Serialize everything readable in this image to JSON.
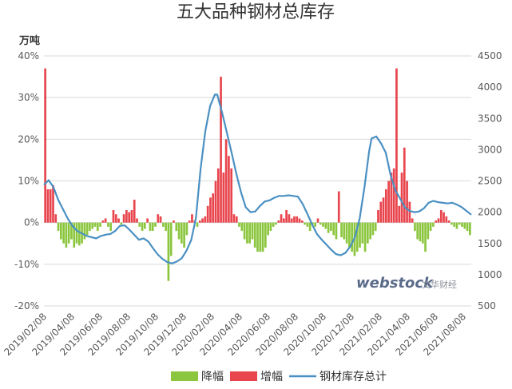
{
  "chart_data": {
    "type": "bar+line",
    "title": "五大品种钢材总库存",
    "y_left_unit": "万吨",
    "y_left_ticks": [
      "40%",
      "30%",
      "20%",
      "10%",
      "0%",
      "-10%",
      "-20%"
    ],
    "y_left_range": [
      -0.2,
      0.4
    ],
    "y_right_ticks": [
      "4500",
      "4000",
      "3500",
      "3000",
      "2500",
      "2000",
      "1500",
      "1000",
      "500"
    ],
    "y_right_range": [
      500,
      4500
    ],
    "x_tick_labels": [
      "2019/02/08",
      "2019/04/08",
      "2019/06/08",
      "2019/08/08",
      "2019/10/08",
      "2019/12/08",
      "2020/02/08",
      "2020/04/08",
      "2020/06/08",
      "2020/08/08",
      "2020/10/08",
      "2020/12/08",
      "2021/02/08",
      "2021/04/08",
      "2021/06/08",
      "2021/08/08"
    ],
    "x_range_weeks": [
      0,
      140
    ],
    "legend": [
      {
        "name": "降幅",
        "color": "#8cc63f"
      },
      {
        "name": "增幅",
        "color": "#e8454d"
      },
      {
        "name": "钢材库存总计",
        "color": "#4a90c2"
      }
    ],
    "watermark": {
      "brand": "webstock",
      "cn": "文华财经"
    },
    "bars_pct": [
      0.37,
      0.08,
      0.08,
      0.09,
      0.02,
      -0.02,
      -0.04,
      -0.05,
      -0.06,
      -0.05,
      -0.04,
      -0.06,
      -0.05,
      -0.055,
      -0.05,
      -0.04,
      -0.03,
      -0.02,
      -0.015,
      -0.01,
      -0.02,
      -0.01,
      0.005,
      0.01,
      -0.01,
      -0.02,
      0.03,
      0.02,
      0.01,
      -0.005,
      0.02,
      0.03,
      0.025,
      0.03,
      0.055,
      0.01,
      -0.01,
      -0.02,
      -0.015,
      0.01,
      -0.02,
      -0.02,
      -0.01,
      0.02,
      0.015,
      -0.01,
      -0.02,
      -0.14,
      -0.08,
      0.005,
      -0.02,
      -0.04,
      -0.05,
      -0.06,
      -0.03,
      0.005,
      0.02,
      0.005,
      -0.01,
      0.005,
      0.01,
      0.015,
      0.04,
      0.06,
      0.07,
      0.1,
      0.13,
      0.35,
      0.12,
      0.2,
      0.16,
      0.13,
      0.02,
      0.015,
      -0.01,
      -0.02,
      -0.04,
      -0.05,
      -0.05,
      -0.04,
      -0.06,
      -0.07,
      -0.07,
      -0.07,
      -0.06,
      -0.03,
      -0.02,
      -0.01,
      -0.005,
      0.005,
      0.02,
      0.01,
      0.03,
      0.02,
      0.01,
      0.015,
      0.015,
      0.01,
      0.005,
      -0.005,
      -0.01,
      -0.02,
      -0.005,
      -0.01,
      0.01,
      -0.005,
      -0.01,
      -0.015,
      -0.025,
      -0.02,
      -0.03,
      -0.04,
      0.075,
      -0.035,
      -0.04,
      -0.05,
      -0.06,
      -0.07,
      -0.08,
      -0.07,
      -0.06,
      -0.05,
      -0.07,
      -0.05,
      -0.04,
      -0.03,
      -0.02,
      0.03,
      0.05,
      0.06,
      0.08,
      0.1,
      0.12,
      0.13,
      0.37,
      0.04,
      0.12,
      0.18,
      0.1,
      0.05,
      0.01,
      -0.02,
      -0.04,
      -0.045,
      -0.05,
      -0.07
    ],
    "bars_pct_tail": [
      -0.04,
      -0.02,
      -0.01,
      0.005,
      0.01,
      0.03,
      0.025,
      0.015,
      0.005,
      -0.005,
      -0.01,
      -0.015,
      -0.005,
      -0.01,
      -0.015,
      -0.02,
      -0.03
    ],
    "inventory_points_wan_ton": [
      [
        0,
        2440
      ],
      [
        2,
        2510
      ],
      [
        4,
        2400
      ],
      [
        6,
        2200
      ],
      [
        8,
        2050
      ],
      [
        10,
        1900
      ],
      [
        12,
        1780
      ],
      [
        14,
        1700
      ],
      [
        16,
        1660
      ],
      [
        18,
        1620
      ],
      [
        20,
        1600
      ],
      [
        22,
        1580
      ],
      [
        24,
        1620
      ],
      [
        26,
        1640
      ],
      [
        28,
        1650
      ],
      [
        30,
        1700
      ],
      [
        32,
        1780
      ],
      [
        34,
        1790
      ],
      [
        36,
        1720
      ],
      [
        38,
        1640
      ],
      [
        40,
        1560
      ],
      [
        42,
        1580
      ],
      [
        44,
        1530
      ],
      [
        46,
        1420
      ],
      [
        48,
        1320
      ],
      [
        50,
        1250
      ],
      [
        52,
        1200
      ],
      [
        54,
        1180
      ],
      [
        56,
        1210
      ],
      [
        58,
        1260
      ],
      [
        60,
        1380
      ],
      [
        62,
        1550
      ],
      [
        64,
        1900
      ],
      [
        66,
        2700
      ],
      [
        68,
        3300
      ],
      [
        70,
        3700
      ],
      [
        72,
        3880
      ],
      [
        73,
        3880
      ],
      [
        75,
        3600
      ],
      [
        77,
        3280
      ],
      [
        79,
        2960
      ],
      [
        81,
        2620
      ],
      [
        83,
        2320
      ],
      [
        85,
        2080
      ],
      [
        87,
        2000
      ],
      [
        89,
        2010
      ],
      [
        91,
        2100
      ],
      [
        93,
        2170
      ],
      [
        95,
        2190
      ],
      [
        97,
        2230
      ],
      [
        99,
        2260
      ],
      [
        101,
        2260
      ],
      [
        103,
        2270
      ],
      [
        105,
        2260
      ],
      [
        107,
        2250
      ],
      [
        109,
        2130
      ],
      [
        111,
        1970
      ],
      [
        113,
        1800
      ],
      [
        115,
        1650
      ],
      [
        117,
        1560
      ],
      [
        119,
        1480
      ],
      [
        121,
        1400
      ],
      [
        123,
        1330
      ],
      [
        125,
        1310
      ],
      [
        127,
        1350
      ],
      [
        129,
        1450
      ],
      [
        131,
        1600
      ],
      [
        133,
        1900
      ],
      [
        135,
        2400
      ],
      [
        137,
        2980
      ],
      [
        138,
        3180
      ],
      [
        140,
        3210
      ],
      [
        142,
        3100
      ],
      [
        144,
        2950
      ],
      [
        146,
        2600
      ],
      [
        148,
        2350
      ],
      [
        150,
        2220
      ],
      [
        152,
        2080
      ],
      [
        154,
        2020
      ],
      [
        156,
        2000
      ],
      [
        158,
        2010
      ],
      [
        160,
        2060
      ],
      [
        162,
        2150
      ],
      [
        164,
        2180
      ],
      [
        166,
        2160
      ],
      [
        168,
        2150
      ],
      [
        170,
        2140
      ],
      [
        172,
        2150
      ],
      [
        174,
        2120
      ],
      [
        176,
        2080
      ],
      [
        178,
        2020
      ],
      [
        180,
        1960
      ]
    ]
  }
}
